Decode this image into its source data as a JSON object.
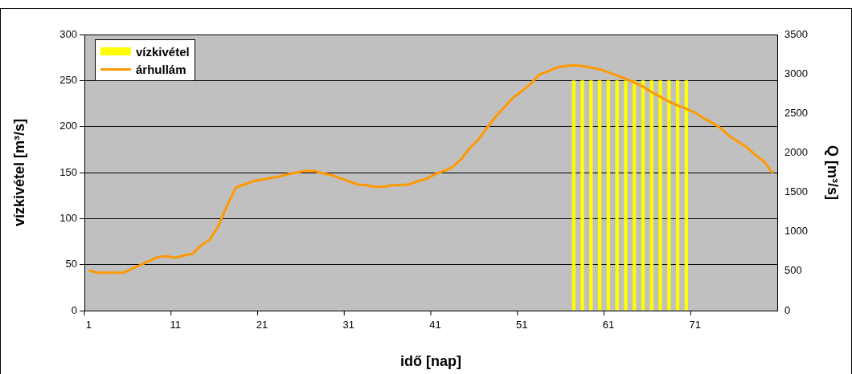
{
  "chart_data": {
    "type": "bar",
    "xlabel": "idő [nap]",
    "ylabel": "vízkivétel [m³/s]",
    "y2label": "Q [m³/s]",
    "categories": [
      "1",
      null,
      null,
      null,
      null,
      null,
      null,
      null,
      null,
      null,
      "11",
      null,
      null,
      null,
      null,
      null,
      null,
      null,
      null,
      null,
      "21",
      null,
      null,
      null,
      null,
      null,
      null,
      null,
      null,
      null,
      "31",
      null,
      null,
      null,
      null,
      null,
      null,
      null,
      null,
      null,
      "41",
      null,
      null,
      null,
      null,
      null,
      null,
      null,
      null,
      null,
      "51",
      null,
      null,
      null,
      null,
      null,
      null,
      null,
      null,
      null,
      "61",
      null,
      null,
      null,
      null,
      null,
      null,
      null,
      null,
      null,
      "71",
      null,
      null,
      null,
      null,
      null,
      null,
      null,
      null,
      null
    ],
    "series": [
      {
        "name": "vízkivétel",
        "type": "bar",
        "color": "#ffff00",
        "values": [
          null,
          null,
          null,
          null,
          null,
          null,
          null,
          null,
          null,
          null,
          null,
          null,
          null,
          null,
          null,
          null,
          null,
          null,
          null,
          null,
          null,
          null,
          null,
          null,
          null,
          null,
          null,
          null,
          null,
          null,
          null,
          null,
          null,
          null,
          null,
          null,
          null,
          null,
          null,
          null,
          null,
          null,
          null,
          null,
          null,
          null,
          null,
          null,
          null,
          null,
          null,
          null,
          null,
          null,
          null,
          null,
          250,
          250,
          250,
          250,
          250,
          250,
          250,
          250,
          250,
          250,
          250,
          250,
          250,
          250,
          null,
          null,
          null,
          null,
          null,
          null,
          null,
          null,
          null,
          null
        ]
      },
      {
        "name": "árhullám",
        "type": "line",
        "axis": "y2",
        "color": "#ff9900",
        "values": [
          510,
          480,
          480,
          480,
          480,
          530,
          580,
          630,
          680,
          690,
          670,
          700,
          720,
          830,
          900,
          1080,
          1340,
          1560,
          1600,
          1640,
          1660,
          1680,
          1700,
          1730,
          1750,
          1770,
          1770,
          1740,
          1720,
          1680,
          1640,
          1600,
          1590,
          1570,
          1570,
          1590,
          1590,
          1600,
          1640,
          1670,
          1730,
          1770,
          1820,
          1920,
          2060,
          2170,
          2320,
          2460,
          2580,
          2700,
          2780,
          2870,
          2990,
          3030,
          3080,
          3100,
          3110,
          3100,
          3080,
          3060,
          3020,
          2980,
          2940,
          2890,
          2840,
          2770,
          2710,
          2650,
          2600,
          2560,
          2510,
          2440,
          2380,
          2310,
          2210,
          2140,
          2070,
          1970,
          1890,
          1740
        ]
      }
    ],
    "ylim": [
      0,
      300
    ],
    "yticks": [
      0,
      50,
      100,
      150,
      200,
      250,
      300
    ],
    "y2lim": [
      0,
      3500
    ],
    "y2ticks": [
      0,
      500,
      1000,
      1500,
      2000,
      2500,
      3000,
      3500
    ],
    "grid": "y",
    "legend": "top left"
  }
}
